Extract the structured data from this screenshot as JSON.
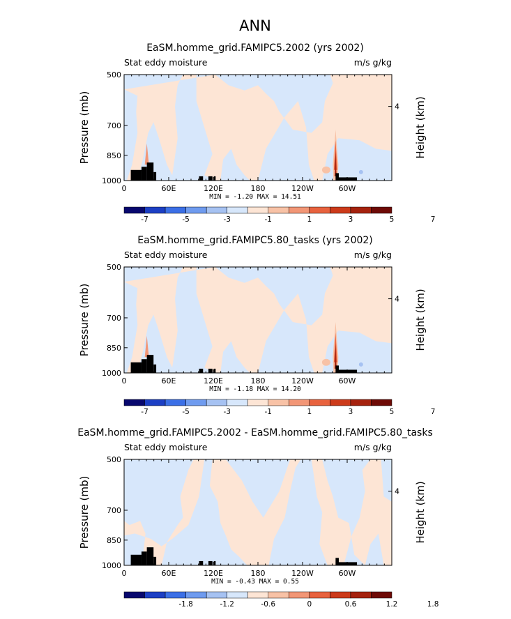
{
  "figure_title": "ANN",
  "colors": {
    "cool_bg": "#d7e7fb",
    "warm_bg": "#fde5d5",
    "land": "#000000"
  },
  "chart_data": [
    {
      "type": "heatmap",
      "title": "EaSM.homme_grid.FAMIPC5.2002 (yrs 2002)",
      "left_label": "Stat eddy moisture",
      "right_label": "m/s g/kg",
      "ylabel": "Pressure (mb)",
      "y2label": "Height (km)",
      "yticks": [
        "500",
        "700",
        "850",
        "1000"
      ],
      "y2ticks": [
        "4"
      ],
      "xticks": [
        "0",
        "60E",
        "120E",
        "180",
        "120W",
        "60W"
      ],
      "stats": "MIN =   -1.20   MAX =   14.51",
      "colorbar": {
        "labels": [
          "-7",
          "-5",
          "-3",
          "-1",
          "1",
          "3",
          "5",
          "7"
        ],
        "colors": [
          "#08086e",
          "#1c3fc4",
          "#3b6fe6",
          "#6f9bef",
          "#a6c2f2",
          "#d7e7fb",
          "#fde5d5",
          "#f8c2a6",
          "#f29676",
          "#e8623e",
          "#cc3a1a",
          "#a5220e",
          "#6e0a06"
        ]
      }
    },
    {
      "type": "heatmap",
      "title": "EaSM.homme_grid.FAMIPC5.80_tasks (yrs 2002)",
      "left_label": "Stat eddy moisture",
      "right_label": "m/s g/kg",
      "ylabel": "Pressure (mb)",
      "y2label": "Height (km)",
      "yticks": [
        "500",
        "700",
        "850",
        "1000"
      ],
      "y2ticks": [
        "4"
      ],
      "xticks": [
        "0",
        "60E",
        "120E",
        "180",
        "120W",
        "60W"
      ],
      "stats": "MIN =   -1.18   MAX =   14.20",
      "colorbar": {
        "labels": [
          "-7",
          "-5",
          "-3",
          "-1",
          "1",
          "3",
          "5",
          "7"
        ],
        "colors": [
          "#08086e",
          "#1c3fc4",
          "#3b6fe6",
          "#6f9bef",
          "#a6c2f2",
          "#d7e7fb",
          "#fde5d5",
          "#f8c2a6",
          "#f29676",
          "#e8623e",
          "#cc3a1a",
          "#a5220e",
          "#6e0a06"
        ]
      }
    },
    {
      "type": "heatmap",
      "title": "EaSM.homme_grid.FAMIPC5.2002 - EaSM.homme_grid.FAMIPC5.80_tasks",
      "left_label": "Stat eddy moisture",
      "right_label": "m/s g/kg",
      "ylabel": "Pressure (mb)",
      "y2label": "Height (km)",
      "yticks": [
        "500",
        "700",
        "850",
        "1000"
      ],
      "y2ticks": [
        "4"
      ],
      "xticks": [
        "0",
        "60E",
        "120E",
        "180",
        "120W",
        "60W"
      ],
      "stats": "MIN =   -0.43   MAX =    0.55",
      "colorbar": {
        "labels": [
          "-1.8",
          "-1.2",
          "-0.6",
          "0",
          "0.6",
          "1.2",
          "1.8"
        ],
        "colors": [
          "#08086e",
          "#1c3fc4",
          "#3b6fe6",
          "#6f9bef",
          "#a6c2f2",
          "#d7e7fb",
          "#fde5d5",
          "#f8c2a6",
          "#f29676",
          "#e8623e",
          "#cc3a1a",
          "#a5220e",
          "#6e0a06"
        ]
      }
    }
  ]
}
